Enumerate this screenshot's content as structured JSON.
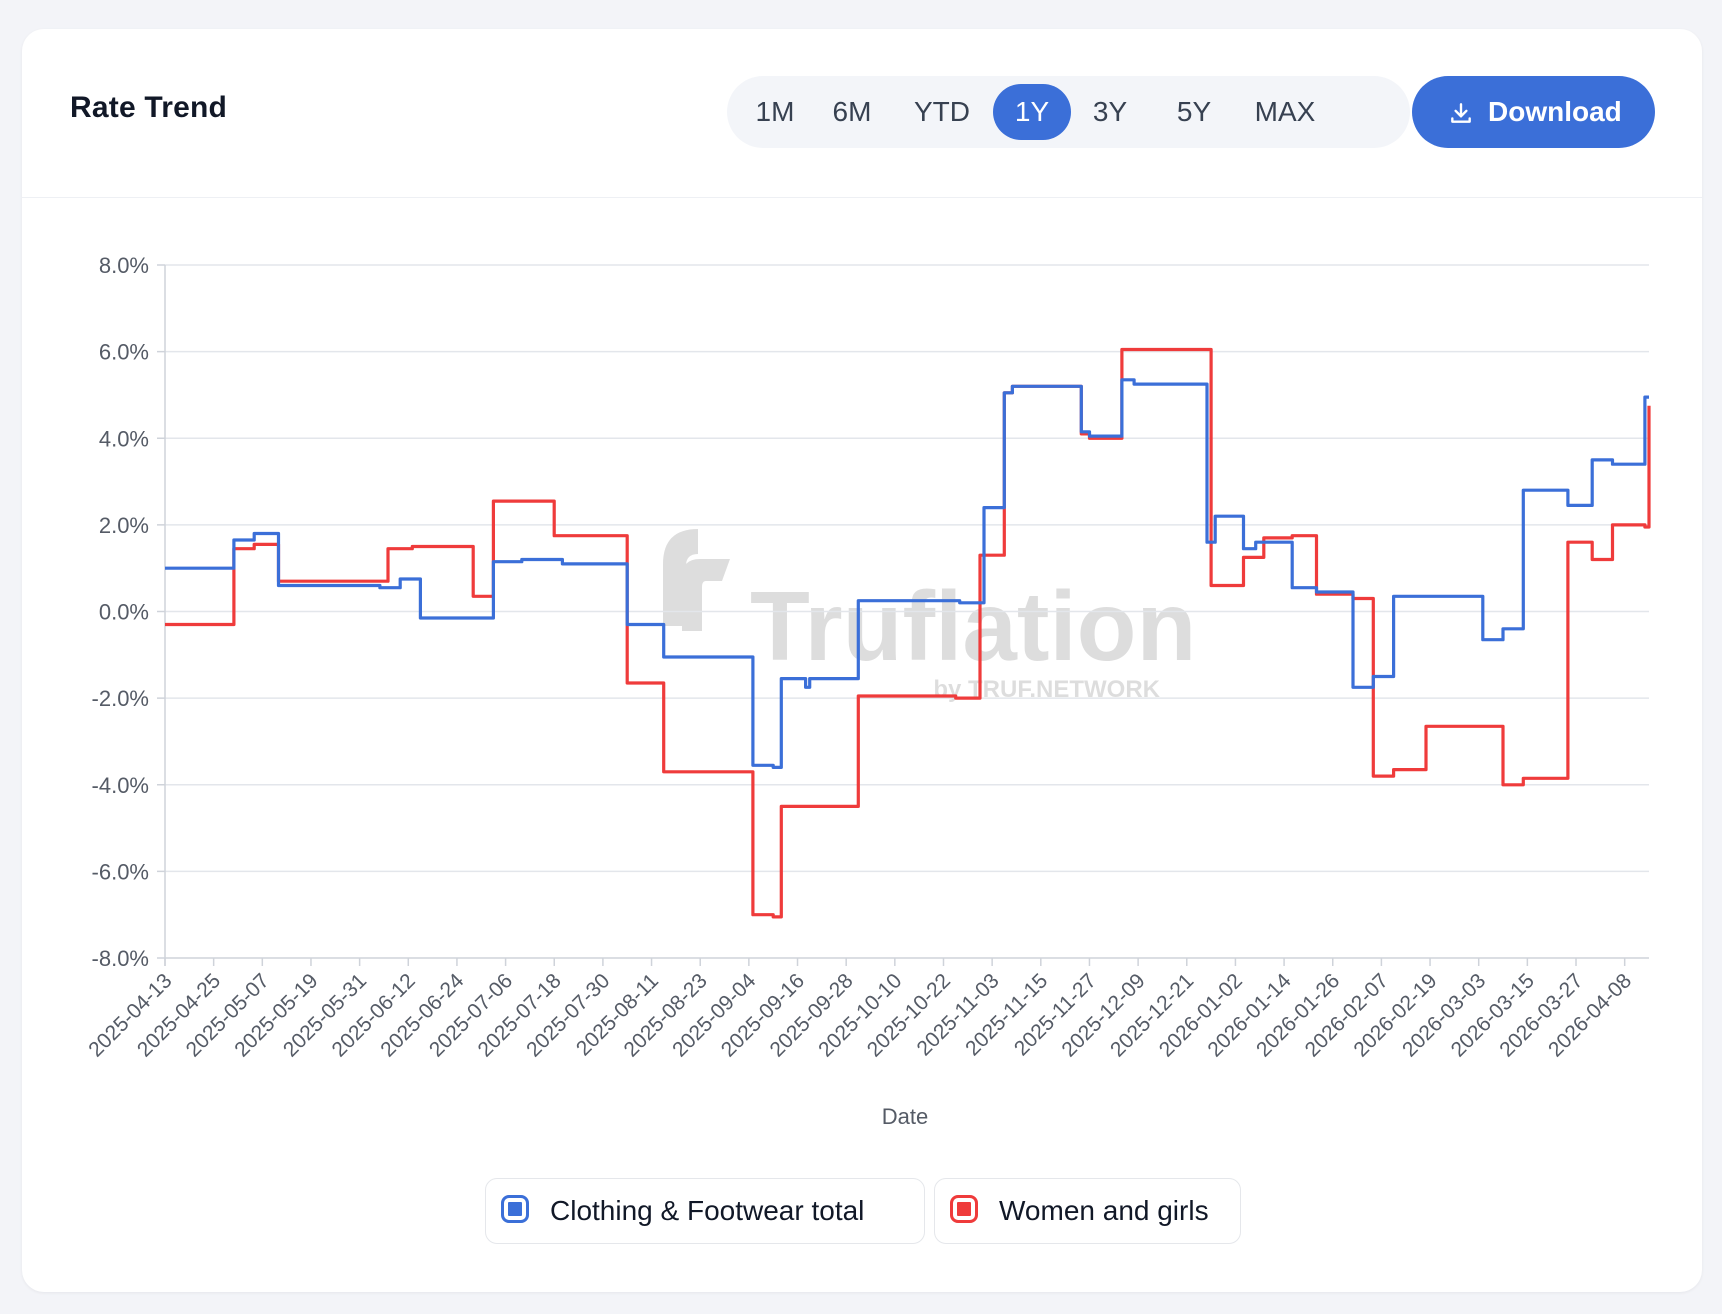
{
  "header": {
    "title": "Rate Trend",
    "ranges": [
      "1M",
      "6M",
      "YTD",
      "1Y",
      "3Y",
      "5Y",
      "MAX"
    ],
    "active_range": "1Y",
    "download_label": "Download"
  },
  "watermark": {
    "brand": "Truflation",
    "tagline": "by TRUF.NETWORK"
  },
  "colors": {
    "accent": "#3b6fd8",
    "series_blue": "#3b6fd8",
    "series_red": "#ef3b3b"
  },
  "chart_data": {
    "type": "line",
    "title": "",
    "xlabel": "Date",
    "ylabel": "",
    "ylim": [
      -8,
      8
    ],
    "yticks": [
      8,
      6,
      4,
      2,
      0,
      -2,
      -4,
      -6,
      -8
    ],
    "ytick_labels": [
      "8.0%",
      "6.0%",
      "4.0%",
      "2.0%",
      "0.0%",
      "-2.0%",
      "-4.0%",
      "-6.0%",
      "-8.0%"
    ],
    "x_start": "2025-04-13",
    "x_end": "2026-04-14",
    "xtick_labels": [
      "2025-04-13",
      "2025-04-25",
      "2025-05-07",
      "2025-05-19",
      "2025-05-31",
      "2025-06-12",
      "2025-06-24",
      "2025-07-06",
      "2025-07-18",
      "2025-07-30",
      "2025-08-11",
      "2025-08-23",
      "2025-09-04",
      "2025-09-16",
      "2025-09-28",
      "2025-10-10",
      "2025-10-22",
      "2025-11-03",
      "2025-11-15",
      "2025-11-27",
      "2025-12-09",
      "2025-12-21",
      "2026-01-02",
      "2026-01-14",
      "2026-01-26",
      "2026-02-07",
      "2026-02-19",
      "2026-03-03",
      "2026-03-15",
      "2026-03-27",
      "2026-04-08"
    ],
    "grid": true,
    "legend": "bottom-center",
    "series": [
      {
        "name": "Clothing & Footwear total",
        "color": "#3b6fd8",
        "x": [
          "2025-04-13",
          "2025-04-30",
          "2025-05-05",
          "2025-05-11",
          "2025-05-12",
          "2025-05-13",
          "2025-06-05",
          "2025-06-10",
          "2025-06-15",
          "2025-07-03",
          "2025-07-10",
          "2025-07-13",
          "2025-07-20",
          "2025-08-02",
          "2025-08-05",
          "2025-08-14",
          "2025-08-31",
          "2025-09-05",
          "2025-09-10",
          "2025-09-12",
          "2025-09-17",
          "2025-09-18",
          "2025-09-19",
          "2025-09-29",
          "2025-10-01",
          "2025-10-26",
          "2025-11-01",
          "2025-11-06",
          "2025-11-08",
          "2025-11-25",
          "2025-11-27",
          "2025-12-05",
          "2025-12-08",
          "2025-12-25",
          "2025-12-26",
          "2025-12-28",
          "2026-01-04",
          "2026-01-07",
          "2026-01-16",
          "2026-01-22",
          "2026-01-31",
          "2026-02-05",
          "2026-02-10",
          "2026-02-18",
          "2026-03-04",
          "2026-03-09",
          "2026-03-14",
          "2026-03-25",
          "2026-03-31",
          "2026-04-05",
          "2026-04-13",
          "2026-04-14"
        ],
        "values": [
          1.0,
          1.65,
          1.8,
          0.6,
          0.6,
          0.6,
          0.55,
          0.75,
          -0.15,
          1.15,
          1.2,
          1.2,
          1.1,
          1.1,
          -0.3,
          -1.05,
          -1.05,
          -3.55,
          -3.6,
          -1.55,
          -1.55,
          -1.75,
          -1.55,
          -1.55,
          0.25,
          0.2,
          2.4,
          5.05,
          5.2,
          4.15,
          4.05,
          5.35,
          5.25,
          5.25,
          1.6,
          2.2,
          1.45,
          1.6,
          0.55,
          0.45,
          -1.75,
          -1.5,
          0.35,
          0.35,
          -0.65,
          -0.4,
          2.8,
          2.45,
          3.5,
          3.4,
          4.95,
          4.95
        ]
      },
      {
        "name": "Women and girls",
        "color": "#ef3b3b",
        "x": [
          "2025-04-13",
          "2025-04-30",
          "2025-05-05",
          "2025-05-11",
          "2025-05-12",
          "2025-05-13",
          "2025-06-01",
          "2025-06-07",
          "2025-06-13",
          "2025-06-28",
          "2025-07-03",
          "2025-07-14",
          "2025-07-18",
          "2025-08-02",
          "2025-08-05",
          "2025-08-14",
          "2025-08-31",
          "2025-09-05",
          "2025-09-10",
          "2025-09-12",
          "2025-09-29",
          "2025-10-01",
          "2025-10-25",
          "2025-10-31",
          "2025-11-06",
          "2025-11-08",
          "2025-11-25",
          "2025-11-27",
          "2025-12-05",
          "2025-12-25",
          "2025-12-27",
          "2026-01-04",
          "2026-01-09",
          "2026-01-16",
          "2026-01-22",
          "2026-01-31",
          "2026-02-05",
          "2026-02-10",
          "2026-02-18",
          "2026-03-04",
          "2026-03-09",
          "2026-03-14",
          "2026-03-25",
          "2026-03-31",
          "2026-04-05",
          "2026-04-13",
          "2026-04-14"
        ],
        "values": [
          -0.3,
          1.45,
          1.55,
          0.7,
          0.7,
          0.7,
          0.7,
          1.45,
          1.5,
          0.35,
          2.55,
          2.55,
          1.75,
          1.75,
          -1.65,
          -3.7,
          -3.7,
          -7.0,
          -7.05,
          -4.5,
          -4.5,
          -1.95,
          -2.0,
          1.3,
          5.05,
          5.2,
          4.1,
          4.0,
          6.05,
          6.05,
          0.6,
          1.25,
          1.7,
          1.75,
          0.4,
          0.3,
          -3.8,
          -3.65,
          -2.65,
          -2.65,
          -4.0,
          -3.85,
          1.6,
          1.2,
          2.0,
          1.95,
          4.75
        ]
      }
    ]
  }
}
